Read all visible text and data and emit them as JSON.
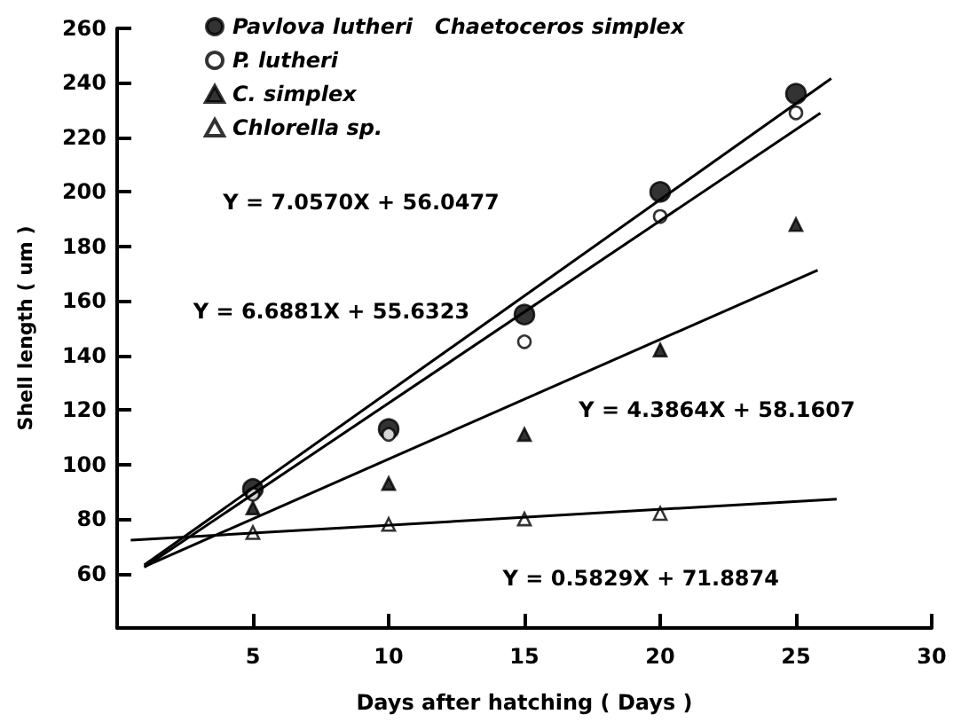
{
  "chart_data": {
    "type": "scatter",
    "xlabel": "Days after hatching ( Days )",
    "ylabel": "Shell length ( um )",
    "xlim": [
      0,
      30
    ],
    "xticks": [
      5,
      10,
      15,
      20,
      25,
      30
    ],
    "ylim": [
      40,
      260
    ],
    "yticks": [
      60,
      80,
      100,
      120,
      140,
      160,
      180,
      200,
      220,
      240,
      260
    ],
    "grid": false,
    "legend": "top left",
    "series": [
      {
        "name": "Pavlova lutheri   Chaetoceros simplex",
        "marker": "circle",
        "color": "#000000",
        "x": [
          5,
          10,
          15,
          20,
          25
        ],
        "values": [
          91,
          113,
          155,
          200,
          236
        ]
      },
      {
        "name": "P. lutheri",
        "marker": "circle",
        "color": "#ffffff",
        "x": [
          5,
          10,
          15,
          20,
          25
        ],
        "values": [
          89,
          111,
          145,
          191,
          229
        ]
      },
      {
        "name": "C. simplex",
        "marker": "triangle",
        "color": "#000000",
        "x": [
          5,
          10,
          15,
          20,
          25
        ],
        "values": [
          84,
          93,
          111,
          142,
          188
        ]
      },
      {
        "name": "Chlorella sp.",
        "marker": "triangle",
        "color": "#ffffff",
        "x": [
          5,
          10,
          15,
          20
        ],
        "values": [
          75,
          78,
          80,
          82
        ]
      },
      {
        "type": "line",
        "marker": "none",
        "line_style": "solid",
        "color": "#000000",
        "x": [
          1,
          26.3
        ],
        "values": [
          63.1,
          241.6
        ]
      },
      {
        "type": "line",
        "marker": "none",
        "line_style": "solid",
        "color": "#000000",
        "x": [
          1,
          25.9
        ],
        "values": [
          62.3,
          228.9
        ]
      },
      {
        "type": "line",
        "marker": "none",
        "line_style": "solid",
        "color": "#000000",
        "x": [
          1,
          25.8
        ],
        "values": [
          62.5,
          171.3
        ]
      },
      {
        "type": "line",
        "marker": "none",
        "line_style": "solid",
        "color": "#000000",
        "x": [
          0.5,
          26.5
        ],
        "values": [
          72.2,
          87.3
        ]
      }
    ],
    "annotations": [
      "Y = 7.0570X + 56.0477",
      "Y = 6.6881X + 55.6323",
      "Y = 4.3864X + 58.1607",
      "Y = 0.5829X + 71.8874"
    ]
  }
}
